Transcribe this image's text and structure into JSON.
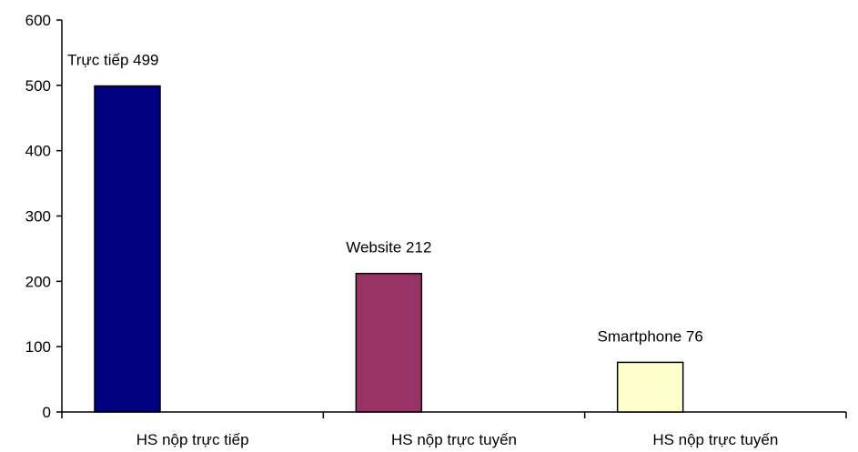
{
  "chart_data": {
    "type": "bar",
    "categories": [
      "HS nộp trực tiếp",
      "HS nộp trực tuyến",
      "HS nộp trực tuyến"
    ],
    "values": [
      499,
      212,
      76
    ],
    "data_labels": [
      "Trực tiếp 499",
      "Website 212",
      "Smartphone 76"
    ],
    "bar_colors": [
      "#000080",
      "#993366",
      "#FFFFCC"
    ],
    "bar_stroke": "#000000",
    "ylim": [
      0,
      600
    ],
    "yticks": [
      0,
      100,
      200,
      300,
      400,
      500,
      600
    ],
    "title": "",
    "xlabel": "",
    "ylabel": "",
    "grid": false,
    "legend": "none"
  }
}
